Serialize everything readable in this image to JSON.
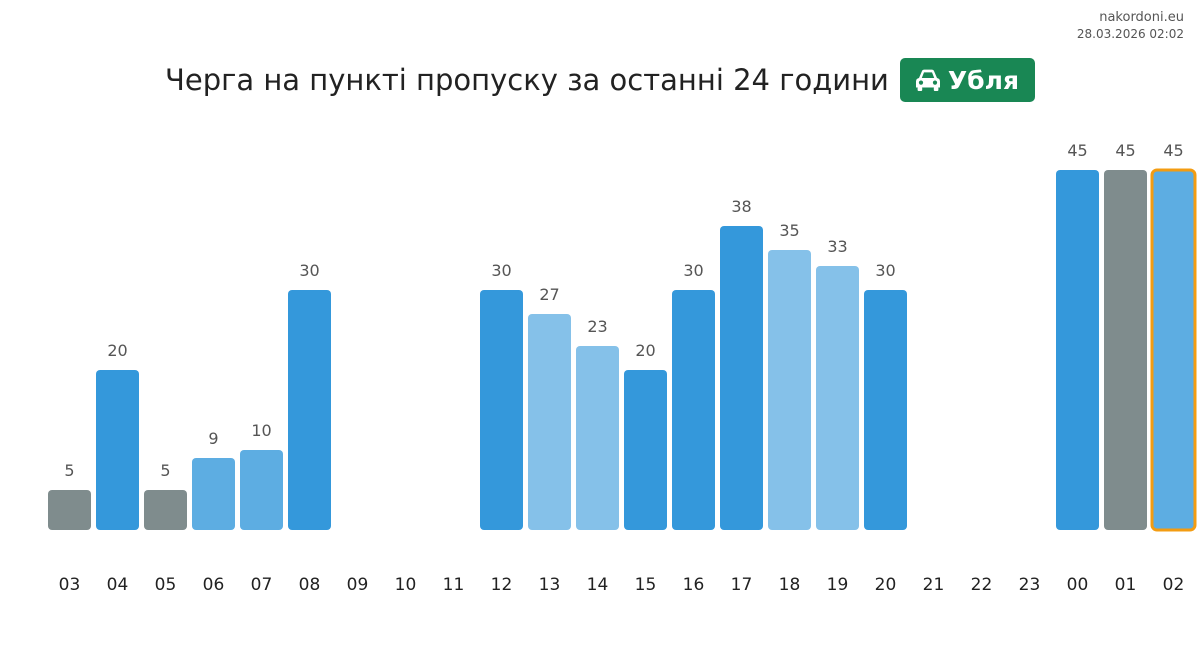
{
  "source": {
    "site": "nakordoni.eu",
    "timestamp": "28.03.2026 02:02"
  },
  "title": "Черга на пункті пропуску за останні 24 години",
  "badge": {
    "label": "Убля",
    "icon": "car-icon",
    "color": "#198754"
  },
  "colors": {
    "dark_blue": "#3498db",
    "mid_blue": "#5dade2",
    "light_blue": "#85c1e9",
    "gray": "#7f8c8d",
    "highlight_outline": "#f39c12"
  },
  "chart_data": {
    "type": "bar",
    "title": "Черга на пункті пропуску за останні 24 години",
    "categories": [
      "03",
      "04",
      "05",
      "06",
      "07",
      "08",
      "09",
      "10",
      "11",
      "12",
      "13",
      "14",
      "15",
      "16",
      "17",
      "18",
      "19",
      "20",
      "21",
      "22",
      "23",
      "00",
      "01",
      "02"
    ],
    "values": [
      5,
      20,
      5,
      9,
      10,
      30,
      null,
      null,
      null,
      30,
      27,
      23,
      20,
      30,
      38,
      35,
      33,
      30,
      null,
      null,
      null,
      45,
      45,
      45
    ],
    "bar_colors": [
      "gray",
      "dark_blue",
      "gray",
      "mid_blue",
      "mid_blue",
      "dark_blue",
      null,
      null,
      null,
      "dark_blue",
      "light_blue",
      "light_blue",
      "dark_blue",
      "dark_blue",
      "dark_blue",
      "light_blue",
      "light_blue",
      "dark_blue",
      null,
      null,
      null,
      "dark_blue",
      "gray",
      "mid_blue"
    ],
    "highlighted_category": "02",
    "ylim": [
      0,
      45
    ],
    "grid": false,
    "legend": "none",
    "xlabel": "",
    "ylabel": ""
  }
}
